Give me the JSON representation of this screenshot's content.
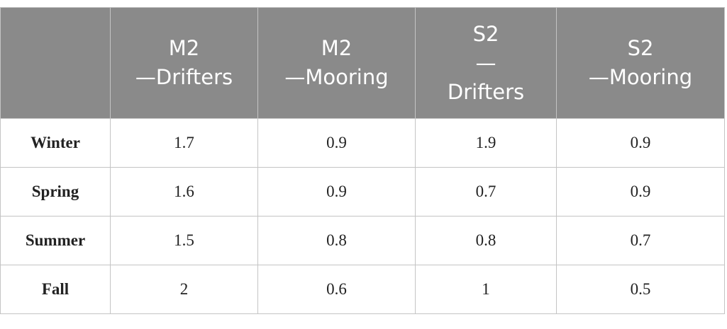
{
  "table": {
    "header": [
      "M2\n—Drifters",
      "M2\n—Mooring",
      "S2\n—\nDrifters",
      "S2\n—Mooring"
    ],
    "rows": [
      [
        "Winter",
        1.7,
        0.9,
        1.9,
        0.9
      ],
      [
        "Spring",
        1.6,
        0.9,
        0.7,
        0.9
      ],
      [
        "Summer",
        1.5,
        0.8,
        0.8,
        0.7
      ],
      [
        "Fall",
        2,
        0.6,
        1,
        0.5
      ]
    ]
  }
}
